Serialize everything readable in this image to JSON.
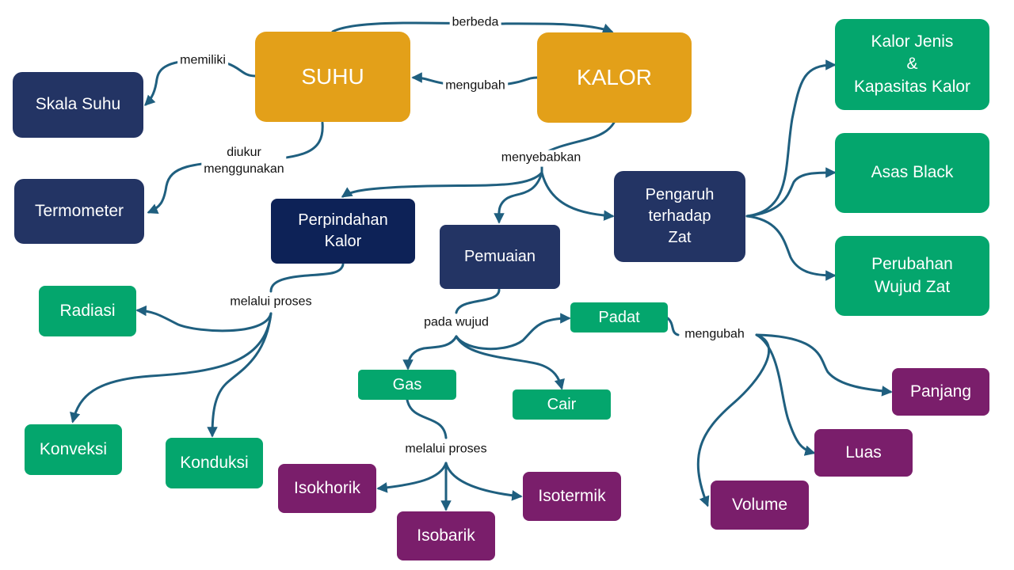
{
  "colors": {
    "arrow": "#1f5f7f",
    "orange": "#e3a019",
    "navy": "#233464",
    "navy_dark": "#0d2257",
    "green": "#04a66d",
    "purple": "#7a1e6b"
  },
  "nodes": {
    "suhu": "SUHU",
    "kalor": "KALOR",
    "skala_suhu": "Skala Suhu",
    "termometer": "Termometer",
    "perpindahan_kalor": "Perpindahan\nKalor",
    "pemuaian": "Pemuaian",
    "pengaruh_zat": "Pengaruh\nterhadap\nZat",
    "kalor_jenis": "Kalor Jenis\n&\nKapasitas Kalor",
    "asas_black": "Asas Black",
    "perubahan_wujud": "Perubahan\nWujud Zat",
    "radiasi": "Radiasi",
    "konveksi": "Konveksi",
    "konduksi": "Konduksi",
    "padat": "Padat",
    "gas": "Gas",
    "cair": "Cair",
    "isokhorik": "Isokhorik",
    "isobarik": "Isobarik",
    "isotermik": "Isotermik",
    "panjang": "Panjang",
    "luas": "Luas",
    "volume": "Volume"
  },
  "labels": {
    "berbeda": "berbeda",
    "memiliki": "memiliki",
    "mengubah_suhu": "mengubah",
    "diukur": "diukur\nmenggunakan",
    "menyebabkan": "menyebabkan",
    "melalui_proses_kalor": "melalui proses",
    "pada_wujud": "pada wujud",
    "mengubah_padat": "mengubah",
    "melalui_proses_gas": "melalui proses"
  }
}
